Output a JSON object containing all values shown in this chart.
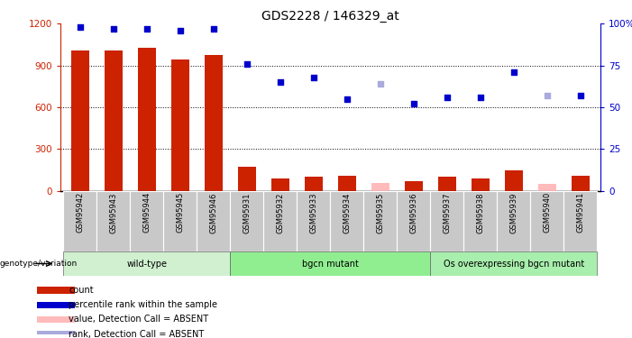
{
  "title": "GDS2228 / 146329_at",
  "samples": [
    "GSM95942",
    "GSM95943",
    "GSM95944",
    "GSM95945",
    "GSM95946",
    "GSM95931",
    "GSM95932",
    "GSM95933",
    "GSM95934",
    "GSM95935",
    "GSM95936",
    "GSM95937",
    "GSM95938",
    "GSM95939",
    "GSM95940",
    "GSM95941"
  ],
  "counts": [
    1010,
    1005,
    1030,
    940,
    975,
    175,
    90,
    100,
    110,
    55,
    70,
    100,
    90,
    148,
    50,
    112
  ],
  "counts_absent": [
    false,
    false,
    false,
    false,
    false,
    false,
    false,
    false,
    false,
    true,
    false,
    false,
    false,
    false,
    true,
    false
  ],
  "percentile_ranks": [
    98,
    97,
    97,
    96,
    97,
    76,
    65,
    68,
    55,
    64,
    52,
    56,
    56,
    71,
    57,
    57
  ],
  "ranks_absent": [
    false,
    false,
    false,
    false,
    false,
    false,
    false,
    false,
    false,
    true,
    false,
    false,
    false,
    false,
    true,
    false
  ],
  "groups": [
    {
      "label": "wild-type",
      "start": 0,
      "end": 5
    },
    {
      "label": "bgcn mutant",
      "start": 5,
      "end": 11
    },
    {
      "label": "Os overexpressing bgcn mutant",
      "start": 11,
      "end": 16
    }
  ],
  "ylim_left": [
    0,
    1200
  ],
  "ylim_right": [
    0,
    100
  ],
  "yticks_left": [
    0,
    300,
    600,
    900,
    1200
  ],
  "yticks_right": [
    0,
    25,
    50,
    75,
    100
  ],
  "bar_color": "#cc2200",
  "bar_absent_color": "#ffbbbb",
  "dot_color": "#0000cc",
  "dot_absent_color": "#aaaadd",
  "group_colors": [
    "#d0f0d0",
    "#90ee90",
    "#a8eeac"
  ],
  "xtick_bg": "#c8c8c8",
  "legend_items": [
    {
      "color": "#cc2200",
      "label": "count"
    },
    {
      "color": "#0000cc",
      "label": "percentile rank within the sample"
    },
    {
      "color": "#ffbbbb",
      "label": "value, Detection Call = ABSENT"
    },
    {
      "color": "#aaaadd",
      "label": "rank, Detection Call = ABSENT"
    }
  ]
}
